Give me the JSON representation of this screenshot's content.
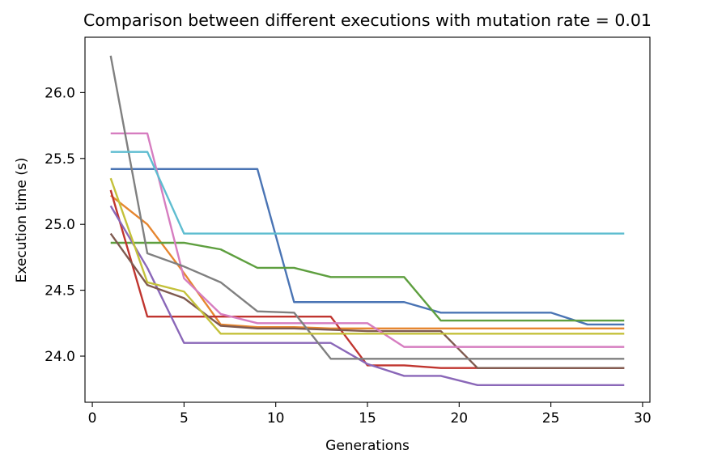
{
  "chart_data": {
    "type": "line",
    "title": "Comparison between different executions with mutation rate = 0.01",
    "xlabel": "Generations",
    "ylabel": "Execution time (s)",
    "xlim": [
      -0.4,
      30.4
    ],
    "ylim": [
      23.65,
      26.42
    ],
    "xticks": [
      0,
      5,
      10,
      15,
      20,
      25,
      30
    ],
    "yticks": [
      24.0,
      24.5,
      25.0,
      25.5,
      26.0
    ],
    "ytick_labels": [
      "24.0",
      "24.5",
      "25.0",
      "25.5",
      "26.0"
    ],
    "grid": false,
    "x": [
      1,
      3,
      5,
      7,
      9,
      11,
      13,
      15,
      17,
      19,
      21,
      23,
      25,
      27,
      29
    ],
    "series": [
      {
        "color": "#4a74b4",
        "values": [
          25.42,
          25.42,
          25.42,
          25.42,
          25.42,
          24.41,
          24.41,
          24.41,
          24.41,
          24.33,
          24.33,
          24.33,
          24.33,
          24.24,
          24.24
        ]
      },
      {
        "color": "#e6862f",
        "values": [
          25.22,
          25.0,
          24.63,
          24.24,
          24.22,
          24.22,
          24.21,
          24.21,
          24.21,
          24.21,
          24.21,
          24.21,
          24.21,
          24.21,
          24.21
        ]
      },
      {
        "color": "#5e9f3f",
        "values": [
          24.86,
          24.86,
          24.86,
          24.81,
          24.67,
          24.67,
          24.6,
          24.6,
          24.6,
          24.27,
          24.27,
          24.27,
          24.27,
          24.27,
          24.27
        ]
      },
      {
        "color": "#c0352f",
        "values": [
          25.26,
          24.3,
          24.3,
          24.3,
          24.3,
          24.3,
          24.3,
          23.93,
          23.93,
          23.91,
          23.91,
          23.91,
          23.91,
          23.91,
          23.91
        ]
      },
      {
        "color": "#8a67b8",
        "values": [
          25.14,
          24.67,
          24.1,
          24.1,
          24.1,
          24.1,
          24.1,
          23.94,
          23.85,
          23.85,
          23.78,
          23.78,
          23.78,
          23.78,
          23.78
        ]
      },
      {
        "color": "#7f5a4f",
        "values": [
          24.93,
          24.54,
          24.44,
          24.23,
          24.21,
          24.21,
          24.2,
          24.19,
          24.19,
          24.19,
          23.91,
          23.91,
          23.91,
          23.91,
          23.91
        ]
      },
      {
        "color": "#d67dc0",
        "values": [
          25.69,
          25.69,
          24.59,
          24.32,
          24.25,
          24.25,
          24.25,
          24.25,
          24.07,
          24.07,
          24.07,
          24.07,
          24.07,
          24.07,
          24.07
        ]
      },
      {
        "color": "#808080",
        "values": [
          26.28,
          24.78,
          24.68,
          24.56,
          24.34,
          24.33,
          23.98,
          23.98,
          23.98,
          23.98,
          23.98,
          23.98,
          23.98,
          23.98,
          23.98
        ]
      },
      {
        "color": "#c4c13a",
        "values": [
          25.35,
          24.56,
          24.49,
          24.17,
          24.17,
          24.17,
          24.17,
          24.17,
          24.17,
          24.17,
          24.17,
          24.17,
          24.17,
          24.17,
          24.17
        ]
      },
      {
        "color": "#5fbdd0",
        "values": [
          25.55,
          25.55,
          24.93,
          24.93,
          24.93,
          24.93,
          24.93,
          24.93,
          24.93,
          24.93,
          24.93,
          24.93,
          24.93,
          24.93,
          24.93
        ]
      }
    ]
  }
}
